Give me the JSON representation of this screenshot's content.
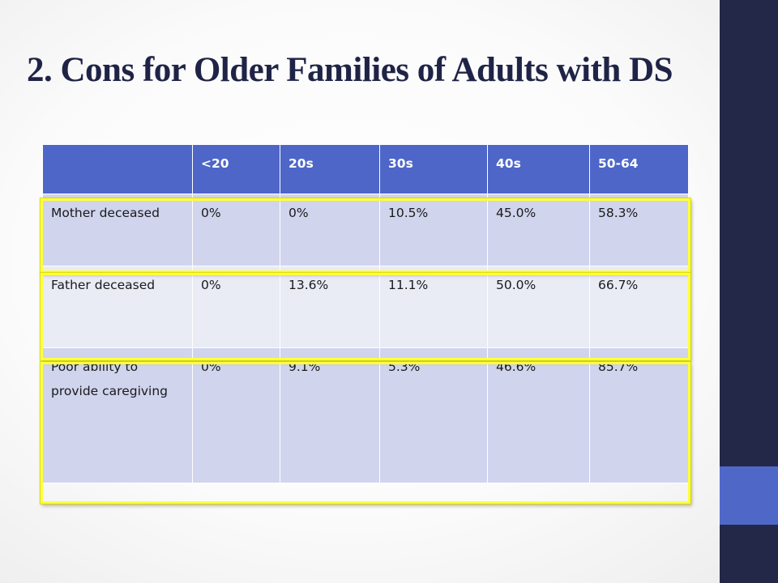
{
  "slide": {
    "title": "2. Cons for Older Families of Adults with DS"
  },
  "colors": {
    "title": "#1f2447",
    "header_fill": "#4d66c8",
    "row_fill_dark": "#d0d4ed",
    "row_fill_light": "#e9ebf5",
    "highlight_border": "#ffff3d",
    "sidebar_dark": "#232849",
    "sidebar_accent": "#4f68c8"
  },
  "table": {
    "headers": [
      "",
      "<20",
      "20s",
      "30s",
      "40s",
      "50-64"
    ],
    "rows": [
      {
        "label": "Mother deceased",
        "values": [
          "0%",
          "0%",
          "10.5%",
          "45.0%",
          "58.3%"
        ],
        "highlighted": true
      },
      {
        "label": "Father deceased",
        "values": [
          "0%",
          "13.6%",
          "11.1%",
          "50.0%",
          "66.7%"
        ],
        "highlighted": true
      },
      {
        "label": "Poor ability to provide caregiving",
        "values": [
          "0%",
          "9.1%",
          "5.3%",
          "46.6%",
          "85.7%"
        ],
        "highlighted": true
      }
    ]
  }
}
